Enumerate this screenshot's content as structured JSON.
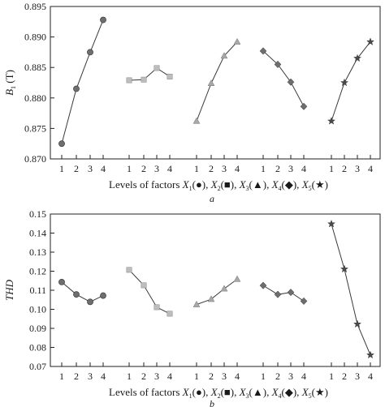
{
  "chart_data": [
    {
      "type": "line",
      "panel_label": "a",
      "ylabel_main": "B",
      "ylabel_sub": "1",
      "ylabel_unit": "(T)",
      "xlabel": "Levels of factors",
      "xlabel_factors": [
        {
          "name": "X",
          "sub": "1",
          "marker": "●"
        },
        {
          "name": "X",
          "sub": "2",
          "marker": "■"
        },
        {
          "name": "X",
          "sub": "3",
          "marker": "▲"
        },
        {
          "name": "X",
          "sub": "4",
          "marker": "◆"
        },
        {
          "name": "X",
          "sub": "5",
          "marker": "★"
        }
      ],
      "ylim": [
        0.87,
        0.895
      ],
      "yticks": [
        "0.870",
        "0.875",
        "0.880",
        "0.885",
        "0.890",
        "0.895"
      ],
      "categories": [
        "1",
        "2",
        "3",
        "4"
      ],
      "series": [
        {
          "marker": "circle",
          "color": "#6e6e6e",
          "values": [
            0.8725,
            0.8815,
            0.8875,
            0.8928
          ]
        },
        {
          "marker": "square",
          "color": "#bdbdbd",
          "values": [
            0.8829,
            0.883,
            0.8849,
            0.8835
          ]
        },
        {
          "marker": "triangle",
          "color": "#a8a8a8",
          "values": [
            0.8762,
            0.8824,
            0.8869,
            0.8892
          ]
        },
        {
          "marker": "diamond",
          "color": "#6e6e6e",
          "values": [
            0.8877,
            0.8855,
            0.8826,
            0.8786
          ]
        },
        {
          "marker": "star",
          "color": "#4a4a4a",
          "values": [
            0.8762,
            0.8825,
            0.8865,
            0.8892
          ]
        }
      ]
    },
    {
      "type": "line",
      "panel_label": "b",
      "ylabel_main": "THD",
      "xlabel": "Levels of factors",
      "xlabel_factors": [
        {
          "name": "X",
          "sub": "1",
          "marker": "●"
        },
        {
          "name": "X",
          "sub": "2",
          "marker": "■"
        },
        {
          "name": "X",
          "sub": "3",
          "marker": "▲"
        },
        {
          "name": "X",
          "sub": "4",
          "marker": "◆"
        },
        {
          "name": "X",
          "sub": "5",
          "marker": "★"
        }
      ],
      "ylim": [
        0.07,
        0.15
      ],
      "yticks": [
        "0.07",
        "0.08",
        "0.09",
        "0.10",
        "0.11",
        "0.12",
        "0.13",
        "0.14",
        "0.15"
      ],
      "categories": [
        "1",
        "2",
        "3",
        "4"
      ],
      "series": [
        {
          "marker": "circle",
          "color": "#6e6e6e",
          "values": [
            0.1143,
            0.1078,
            0.1039,
            0.1072
          ]
        },
        {
          "marker": "square",
          "color": "#bdbdbd",
          "values": [
            0.1207,
            0.1126,
            0.1011,
            0.0977
          ]
        },
        {
          "marker": "triangle",
          "color": "#a8a8a8",
          "values": [
            0.1025,
            0.1053,
            0.1108,
            0.1158
          ]
        },
        {
          "marker": "diamond",
          "color": "#6e6e6e",
          "values": [
            0.1125,
            0.1078,
            0.1089,
            0.1043
          ]
        },
        {
          "marker": "star",
          "color": "#4a4a4a",
          "values": [
            0.1448,
            0.1211,
            0.0922,
            0.076
          ]
        }
      ]
    }
  ]
}
